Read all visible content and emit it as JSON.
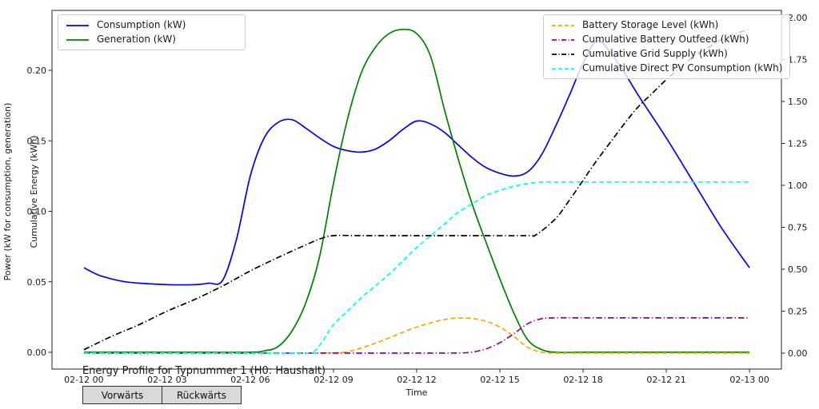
{
  "buttons": {
    "forward_label": "Vorwärts",
    "backward_label": "Rückwärts"
  },
  "chart_data": {
    "type": "line",
    "title": "Energy Profile for Typnummer 1 (H0: Haushalt)",
    "xlabel": "Time",
    "ylabel_power": "Power (kW for consumption, generation)",
    "ylabel_energy": "Cumulative Energy (kWh)",
    "grid": false,
    "x_range_hours": [
      -1.15,
      25.15
    ],
    "ylim_left": [
      -0.0119,
      0.2425
    ],
    "ylim_right": [
      -0.0952,
      2.0429
    ],
    "x_tick_hours": [
      0,
      3,
      6,
      9,
      12,
      15,
      18,
      21,
      24
    ],
    "x_tick_labels": [
      "02-12 00",
      "02-12 03",
      "02-12 06",
      "02-12 09",
      "02-12 12",
      "02-12 15",
      "02-12 18",
      "02-12 21",
      "02-13 00"
    ],
    "left_tick_values": [
      0.0,
      0.05,
      0.1,
      0.15,
      0.2
    ],
    "left_tick_labels": [
      "0.00",
      "0.05",
      "0.10",
      "0.15",
      "0.20"
    ],
    "right_tick_values": [
      0.0,
      0.25,
      0.5,
      0.75,
      1.0,
      1.25,
      1.5,
      1.75,
      2.0
    ],
    "right_tick_labels": [
      "0.00",
      "0.25",
      "0.50",
      "0.75",
      "1.00",
      "1.25",
      "1.50",
      "1.75",
      "2.00"
    ],
    "legend_left_position": "upper left",
    "legend_right_position": "upper right",
    "series": [
      {
        "name": "Consumption (kW)",
        "axis": "left",
        "color": "#0000ff",
        "style": "solid",
        "x": [
          0,
          0.5,
          1,
          1.5,
          2,
          3,
          4,
          4.5,
          5,
          5.5,
          6,
          6.5,
          7,
          7.5,
          8,
          8.5,
          9,
          9.5,
          10,
          10.5,
          11,
          11.5,
          12,
          12.5,
          13,
          13.5,
          14,
          14.5,
          15,
          15.5,
          16,
          16.5,
          17,
          17.5,
          18,
          18.5,
          19,
          19.5,
          20,
          21,
          22,
          23,
          24
        ],
        "y": [
          0.06,
          0.055,
          0.052,
          0.05,
          0.049,
          0.048,
          0.048,
          0.049,
          0.051,
          0.08,
          0.125,
          0.152,
          0.163,
          0.165,
          0.159,
          0.152,
          0.146,
          0.143,
          0.142,
          0.144,
          0.15,
          0.158,
          0.164,
          0.162,
          0.156,
          0.147,
          0.138,
          0.131,
          0.127,
          0.125,
          0.128,
          0.14,
          0.16,
          0.182,
          0.205,
          0.221,
          0.212,
          0.198,
          0.182,
          0.152,
          0.12,
          0.088,
          0.06
        ]
      },
      {
        "name": "Generation (kW)",
        "axis": "left",
        "color": "#008000",
        "style": "solid",
        "x": [
          0,
          2,
          4,
          6,
          6.5,
          7,
          7.5,
          8,
          8.5,
          9,
          9.5,
          10,
          10.5,
          11,
          11.5,
          12,
          12.5,
          13,
          13.5,
          14,
          14.5,
          15,
          15.5,
          16,
          16.5,
          17,
          18,
          20,
          22,
          24
        ],
        "y": [
          0,
          0,
          0,
          0,
          0.001,
          0.004,
          0.015,
          0.035,
          0.068,
          0.12,
          0.165,
          0.198,
          0.216,
          0.226,
          0.229,
          0.226,
          0.21,
          0.172,
          0.137,
          0.105,
          0.078,
          0.052,
          0.028,
          0.009,
          0.002,
          0,
          0,
          0,
          0,
          0
        ]
      },
      {
        "name": "Battery Storage Level (kWh)",
        "axis": "right",
        "color": "#ffa500",
        "style": "dashed",
        "x": [
          0,
          4,
          8,
          9,
          9.5,
          10,
          10.5,
          11,
          11.5,
          12,
          12.5,
          13,
          13.5,
          14,
          14.5,
          15,
          15.5,
          16,
          16.5,
          17,
          18,
          20,
          22,
          24
        ],
        "y": [
          0,
          0,
          0,
          0.002,
          0.008,
          0.03,
          0.058,
          0.09,
          0.124,
          0.155,
          0.18,
          0.2,
          0.209,
          0.206,
          0.19,
          0.155,
          0.1,
          0.035,
          0.005,
          0,
          0,
          0,
          0,
          0
        ]
      },
      {
        "name": "Cumulative Battery Outfeed (kWh)",
        "axis": "right",
        "color": "#990099",
        "style": "dashdot",
        "x": [
          0,
          4,
          8,
          12,
          13.5,
          14,
          14.5,
          15,
          15.5,
          16,
          16.5,
          17,
          18,
          20,
          22,
          24
        ],
        "y": [
          0,
          0,
          0,
          0,
          0.001,
          0.006,
          0.025,
          0.062,
          0.115,
          0.175,
          0.205,
          0.21,
          0.21,
          0.21,
          0.21,
          0.21
        ]
      },
      {
        "name": "Cumulative Grid Supply (kWh)",
        "axis": "right",
        "color": "#000000",
        "style": "dashdot",
        "x": [
          0,
          1,
          2,
          3,
          4,
          5,
          6,
          7,
          8,
          8.5,
          9,
          10,
          12,
          14,
          16,
          16.3,
          17,
          17.5,
          18,
          18.5,
          19,
          19.5,
          20,
          20.5,
          21,
          21.5,
          22,
          22.5,
          23,
          23.5,
          24
        ],
        "y": [
          0.02,
          0.1,
          0.17,
          0.25,
          0.32,
          0.4,
          0.49,
          0.57,
          0.645,
          0.68,
          0.7,
          0.7,
          0.7,
          0.7,
          0.7,
          0.705,
          0.8,
          0.91,
          1.03,
          1.15,
          1.26,
          1.37,
          1.47,
          1.55,
          1.63,
          1.7,
          1.77,
          1.82,
          1.87,
          1.905,
          1.93
        ]
      },
      {
        "name": "Cumulative Direct PV Consumption (kWh)",
        "axis": "right",
        "color": "#00ffff",
        "style": "dashed",
        "x": [
          0,
          4,
          8,
          8.3,
          8.6,
          9,
          9.5,
          10,
          10.5,
          11,
          11.5,
          12,
          12.5,
          13,
          13.5,
          14,
          14.5,
          15,
          15.5,
          16,
          16.5,
          17,
          18,
          20,
          22,
          24
        ],
        "y": [
          0,
          0,
          0,
          0.01,
          0.07,
          0.17,
          0.25,
          0.33,
          0.4,
          0.47,
          0.55,
          0.63,
          0.7,
          0.77,
          0.84,
          0.89,
          0.94,
          0.97,
          0.995,
          1.01,
          1.02,
          1.02,
          1.02,
          1.02,
          1.02,
          1.02
        ]
      }
    ],
    "legend_left_indexes": [
      0,
      1
    ],
    "legend_right_indexes": [
      2,
      3,
      4,
      5
    ]
  }
}
